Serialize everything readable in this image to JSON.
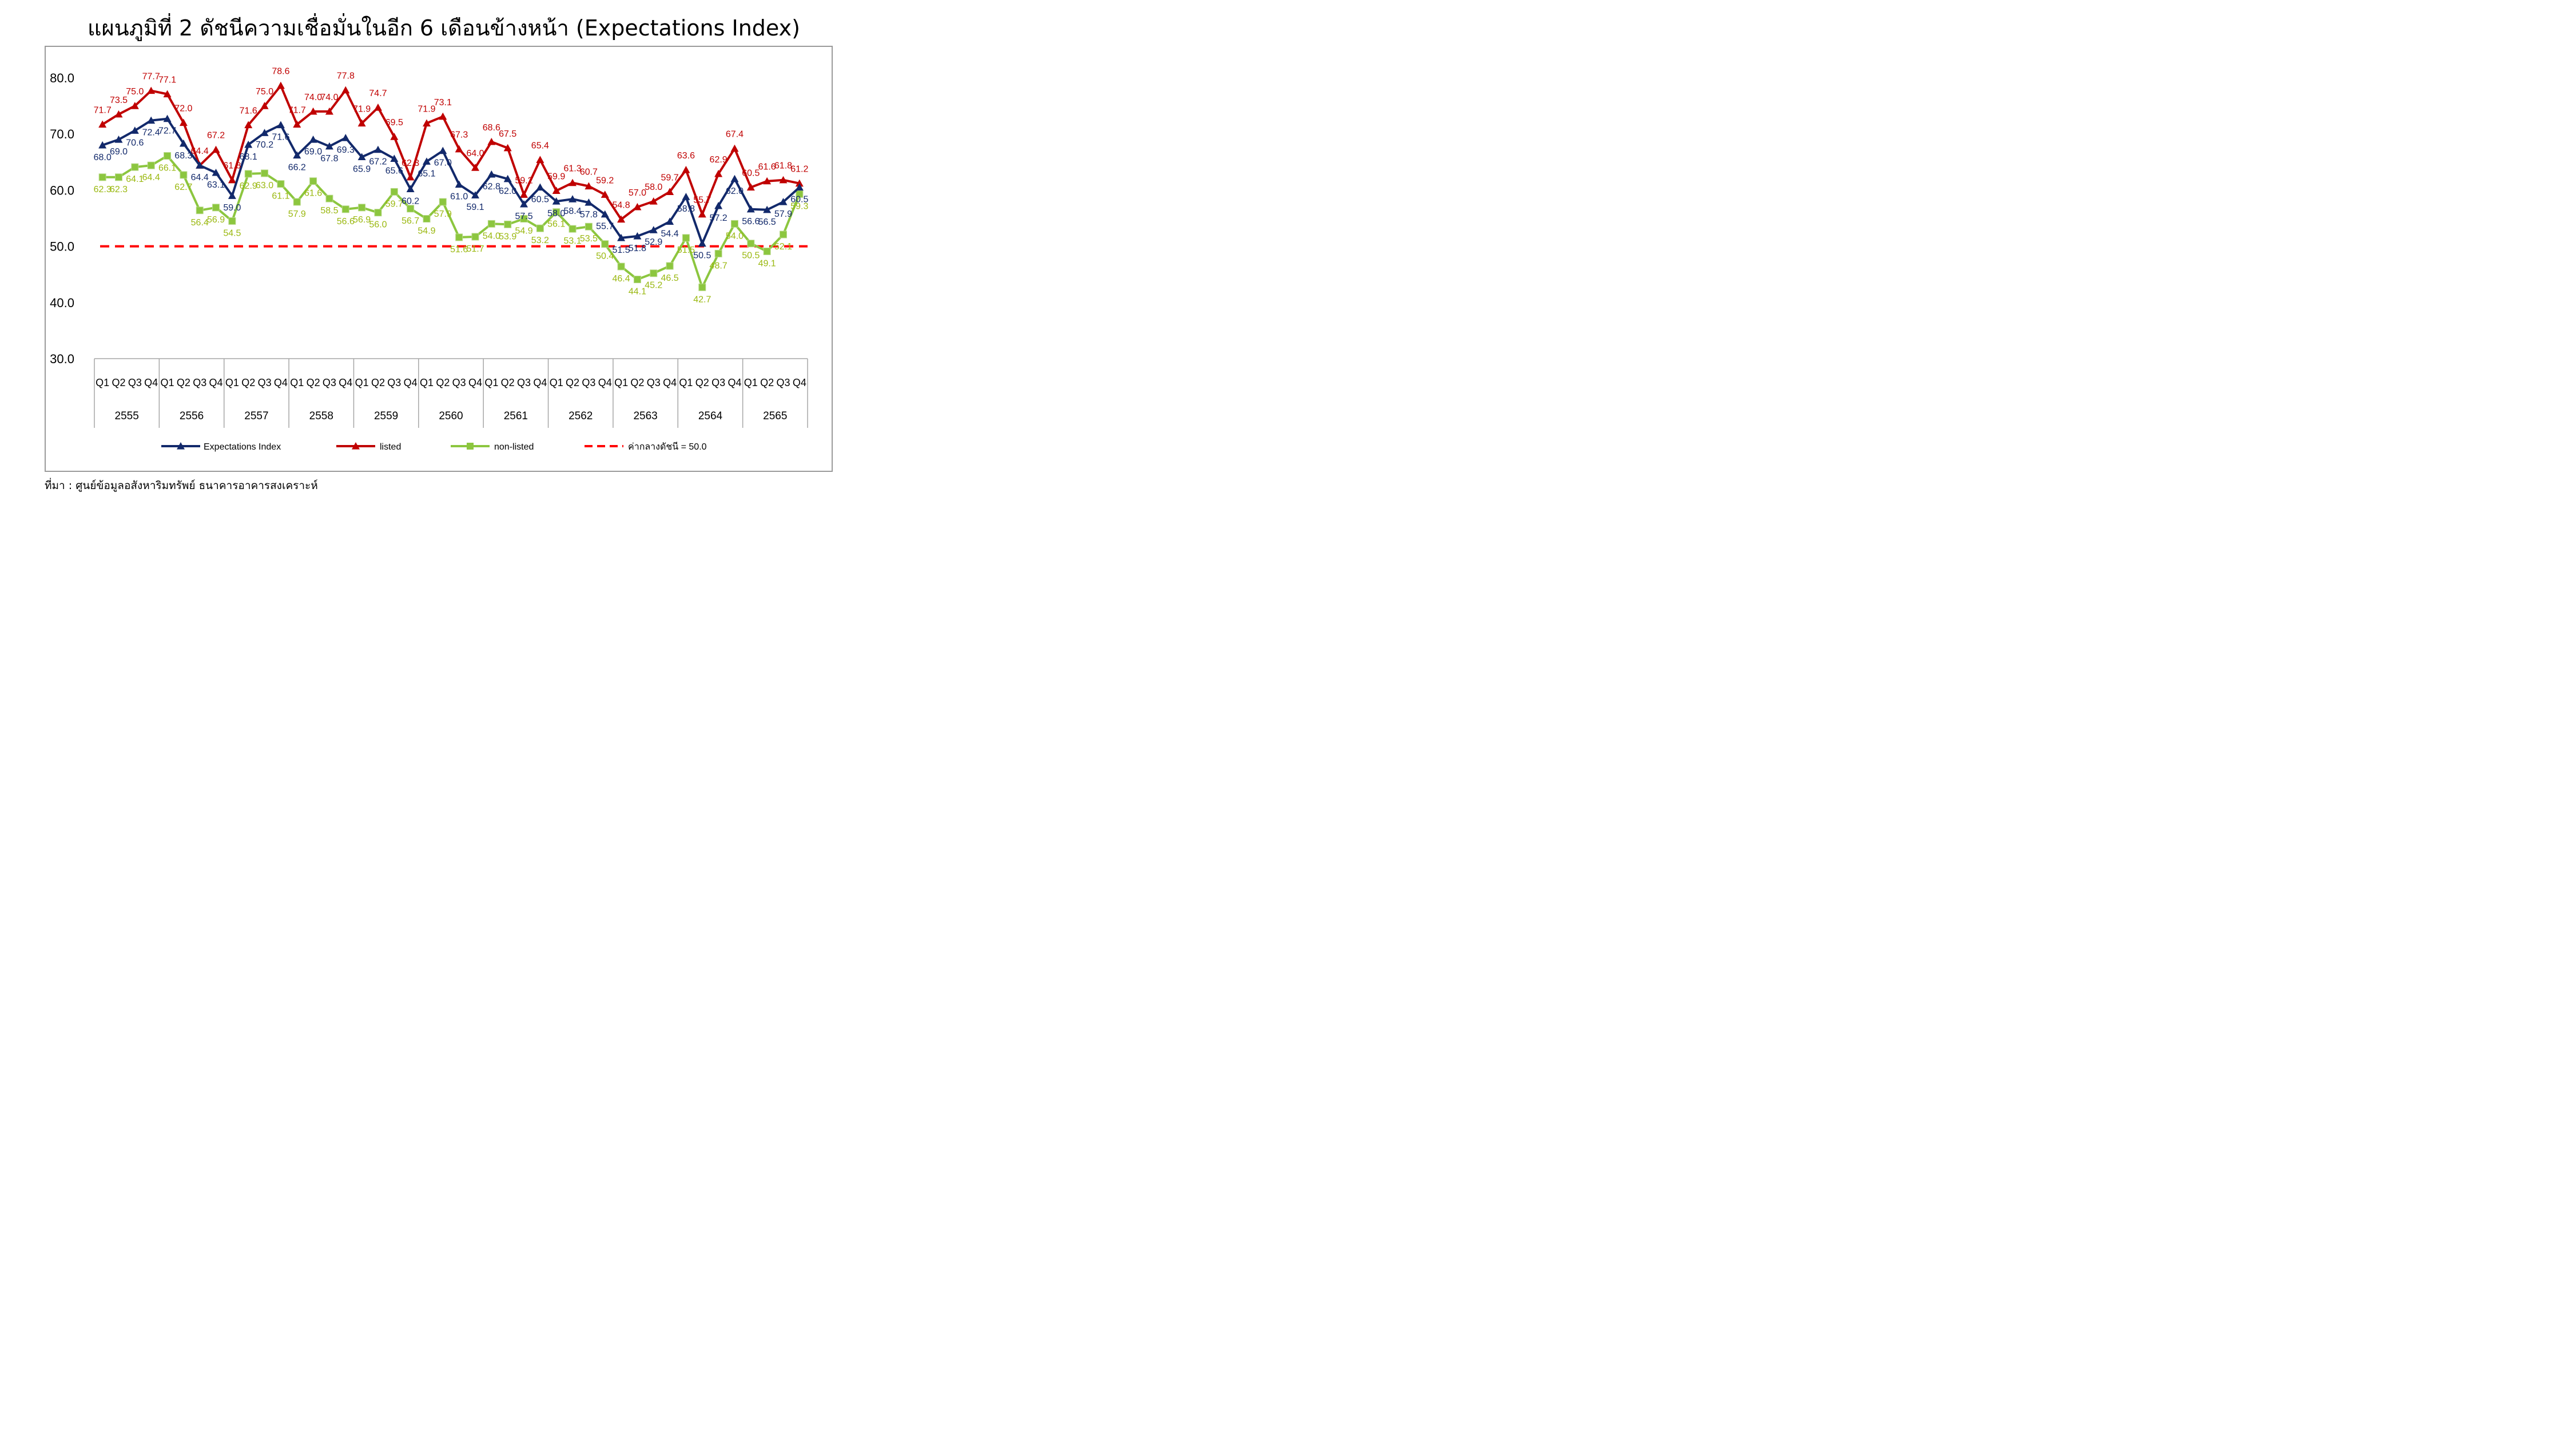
{
  "title": "แผนภูมิที่ 2 ดัชนีความเชื่อมั่นในอีก 6 เดือนข้างหน้า (Expectations Index)",
  "source": "ที่มา : ศูนย์ข้อมูลอสังหาริมทรัพย์ ธนาคารอาคารสงเคราะห์",
  "chart_data": {
    "type": "line",
    "title": "แผนภูมิที่ 2 ดัชนีความเชื่อมั่นในอีก 6 เดือนข้างหน้า (Expectations Index)",
    "ylim": [
      30,
      80
    ],
    "yticks": [
      "30.0",
      "40.0",
      "50.0",
      "60.0",
      "70.0",
      "80.0"
    ],
    "grid": false,
    "legend_position": "bottom",
    "years": [
      "2555",
      "2556",
      "2557",
      "2558",
      "2559",
      "2560",
      "2561",
      "2562",
      "2563",
      "2564",
      "2565"
    ],
    "quarters": [
      "Q1",
      "Q2",
      "Q3",
      "Q4"
    ],
    "series": [
      {
        "name": "Expectations Index",
        "color": "#12296b",
        "marker": "triangle",
        "values": [
          68.0,
          69.0,
          70.6,
          72.4,
          72.7,
          68.3,
          64.4,
          63.1,
          59.0,
          68.1,
          70.2,
          71.6,
          66.2,
          69.0,
          67.8,
          69.3,
          65.9,
          67.2,
          65.6,
          60.2,
          65.1,
          67.0,
          61.0,
          59.1,
          62.8,
          62.0,
          57.5,
          60.5,
          58.0,
          58.4,
          57.8,
          55.7,
          51.5,
          51.8,
          52.9,
          54.4,
          58.8,
          50.5,
          57.2,
          62.0,
          56.6,
          56.5,
          57.9,
          60.5
        ]
      },
      {
        "name": "listed",
        "color": "#c00000",
        "marker": "triangle",
        "values": [
          71.7,
          73.5,
          75.0,
          77.7,
          77.1,
          72.0,
          64.4,
          67.2,
          61.8,
          71.6,
          75.0,
          78.6,
          71.7,
          74.0,
          74.0,
          77.8,
          71.9,
          74.7,
          69.5,
          62.3,
          71.9,
          73.1,
          67.3,
          64.0,
          68.6,
          67.5,
          59.2,
          65.4,
          59.9,
          61.3,
          60.7,
          59.2,
          54.8,
          57.0,
          58.0,
          59.7,
          63.6,
          55.7,
          62.9,
          67.4,
          60.5,
          61.6,
          61.8,
          61.2
        ]
      },
      {
        "name": "non-listed",
        "color": "#8cc63f",
        "label_color": "#9ab80f",
        "marker": "square",
        "values": [
          62.3,
          62.3,
          64.1,
          64.4,
          66.1,
          62.7,
          56.4,
          56.9,
          54.5,
          62.9,
          63.0,
          61.1,
          57.9,
          61.6,
          58.5,
          56.6,
          56.9,
          56.0,
          59.7,
          56.7,
          54.9,
          57.9,
          51.6,
          51.7,
          54.0,
          53.9,
          54.9,
          53.2,
          56.1,
          53.1,
          53.5,
          50.4,
          46.4,
          44.1,
          45.2,
          46.5,
          51.5,
          42.7,
          48.7,
          54.0,
          50.5,
          49.1,
          52.1,
          59.3
        ]
      },
      {
        "name": "ค่ากลางดัชนี = 50.0",
        "color": "#ff0000",
        "style": "dashed",
        "value": 50.0
      }
    ]
  }
}
